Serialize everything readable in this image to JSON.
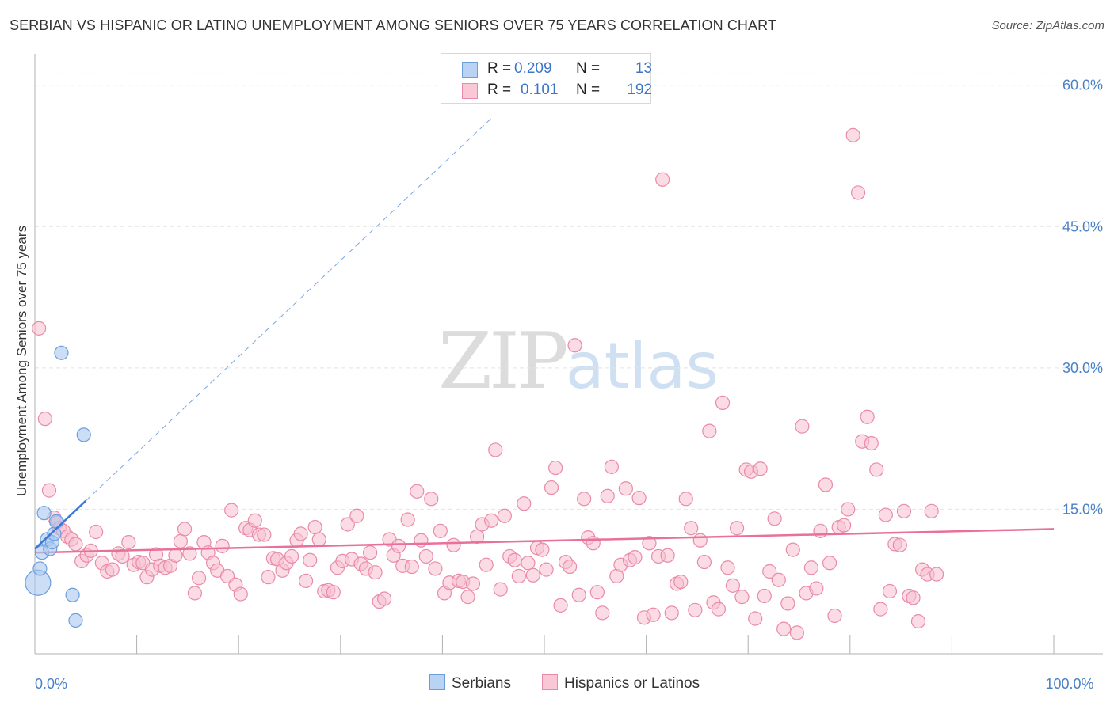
{
  "title": "SERBIAN VS HISPANIC OR LATINO UNEMPLOYMENT AMONG SENIORS OVER 75 YEARS CORRELATION CHART",
  "source": "Source: ZipAtlas.com",
  "watermark": {
    "zip": "ZIP",
    "atlas": "atlas"
  },
  "legend": {
    "rows": [
      {
        "r_label": "R =",
        "r_value": "0.209",
        "n_label": "N =",
        "n_value": "13"
      },
      {
        "r_label": "R =",
        "r_value": "0.101",
        "n_label": "N =",
        "n_value": "192"
      }
    ]
  },
  "bottom_legend": {
    "serbians": "Serbians",
    "hispanics": "Hispanics or Latinos"
  },
  "colors": {
    "serbian_fill": "#a9c8f0",
    "serbian_stroke": "#6d9edc",
    "serbian_line": "#3b78d8",
    "hispanic_fill": "#f7bfd0",
    "hispanic_stroke": "#e98aab",
    "hispanic_line": "#e8709a",
    "tick_label": "#4a80c8",
    "grid": "#e4e4e4"
  },
  "chart_data": {
    "type": "scatter",
    "title": "SERBIAN VS HISPANIC OR LATINO UNEMPLOYMENT AMONG SENIORS OVER 75 YEARS CORRELATION CHART",
    "xlabel": "",
    "ylabel": "Unemployment Among Seniors over 75 years",
    "xlim": [
      0,
      100
    ],
    "ylim": [
      0,
      63
    ],
    "x_tick_labels": [
      {
        "value": 0,
        "label": "0.0%"
      },
      {
        "value": 100,
        "label": "100.0%"
      }
    ],
    "y_tick_labels": [
      {
        "value": 15,
        "label": "15.0%"
      },
      {
        "value": 30,
        "label": "30.0%"
      },
      {
        "value": 45,
        "label": "45.0%"
      },
      {
        "value": 60,
        "label": "60.0%"
      }
    ],
    "grid": true,
    "legend_position": "top-center",
    "series": [
      {
        "name": "Serbians",
        "r": 0.209,
        "n": 13,
        "trend": {
          "x0": 0,
          "y0": 10.8,
          "x1": 5,
          "y1": 15.9,
          "dashed_to_x": 45
        },
        "points": [
          [
            0.3,
            7.2,
            1.0
          ],
          [
            0.5,
            8.7,
            0.6
          ],
          [
            0.7,
            10.4,
            0.6
          ],
          [
            0.9,
            14.6,
            0.6
          ],
          [
            1.2,
            11.8,
            0.6
          ],
          [
            1.5,
            10.8,
            0.6
          ],
          [
            1.7,
            11.5,
            0.6
          ],
          [
            1.9,
            12.4,
            0.6
          ],
          [
            2.1,
            13.7,
            0.6
          ],
          [
            2.6,
            31.6,
            0.6
          ],
          [
            3.7,
            5.9,
            0.6
          ],
          [
            4.0,
            3.2,
            0.6
          ],
          [
            4.8,
            22.9,
            0.6
          ]
        ]
      },
      {
        "name": "Hispanics or Latinos",
        "r": 0.101,
        "n": 192,
        "trend": {
          "x0": 0,
          "y0": 10.4,
          "x1": 100,
          "y1": 12.9
        },
        "points": [
          [
            0.4,
            34.2
          ],
          [
            1.0,
            24.6
          ],
          [
            1.4,
            17.0
          ],
          [
            1.9,
            14.1
          ],
          [
            2.2,
            13.6
          ],
          [
            2.4,
            13.0
          ],
          [
            2.8,
            12.7
          ],
          [
            3.2,
            12.1
          ],
          [
            3.6,
            11.8
          ],
          [
            4.0,
            11.3
          ],
          [
            4.6,
            9.5
          ],
          [
            5.1,
            10.1
          ],
          [
            5.5,
            10.6
          ],
          [
            6.0,
            12.6
          ],
          [
            6.6,
            9.3
          ],
          [
            7.1,
            8.4
          ],
          [
            7.6,
            8.6
          ],
          [
            8.2,
            10.3
          ],
          [
            8.6,
            10.0
          ],
          [
            9.2,
            11.5
          ],
          [
            9.7,
            9.1
          ],
          [
            10.2,
            9.4
          ],
          [
            10.6,
            9.3
          ],
          [
            11.0,
            7.8
          ],
          [
            11.5,
            8.6
          ],
          [
            11.9,
            10.2
          ],
          [
            12.3,
            9.0
          ],
          [
            12.8,
            8.8
          ],
          [
            13.3,
            9.0
          ],
          [
            13.8,
            10.1
          ],
          [
            14.3,
            11.6
          ],
          [
            14.7,
            12.9
          ],
          [
            15.2,
            10.3
          ],
          [
            15.7,
            6.1
          ],
          [
            16.1,
            7.7
          ],
          [
            16.6,
            11.5
          ],
          [
            17.0,
            10.4
          ],
          [
            17.5,
            9.3
          ],
          [
            17.9,
            8.5
          ],
          [
            18.4,
            11.1
          ],
          [
            18.9,
            7.9
          ],
          [
            19.3,
            14.9
          ],
          [
            19.7,
            7.0
          ],
          [
            20.2,
            6.0
          ],
          [
            20.7,
            13.0
          ],
          [
            21.1,
            12.8
          ],
          [
            21.6,
            13.8
          ],
          [
            22.0,
            12.3
          ],
          [
            22.5,
            12.3
          ],
          [
            22.9,
            7.8
          ],
          [
            23.4,
            9.8
          ],
          [
            23.8,
            9.7
          ],
          [
            24.3,
            8.5
          ],
          [
            24.7,
            9.3
          ],
          [
            25.2,
            10.0
          ],
          [
            25.7,
            11.7
          ],
          [
            26.1,
            12.4
          ],
          [
            26.6,
            7.4
          ],
          [
            27.0,
            9.6
          ],
          [
            27.5,
            13.1
          ],
          [
            27.9,
            11.8
          ],
          [
            28.4,
            6.3
          ],
          [
            28.8,
            6.4
          ],
          [
            29.3,
            6.2
          ],
          [
            29.7,
            8.8
          ],
          [
            30.2,
            9.5
          ],
          [
            30.7,
            13.4
          ],
          [
            31.1,
            9.7
          ],
          [
            31.6,
            14.3
          ],
          [
            32.0,
            9.2
          ],
          [
            32.5,
            8.7
          ],
          [
            32.9,
            10.4
          ],
          [
            33.4,
            8.3
          ],
          [
            33.8,
            5.2
          ],
          [
            34.3,
            5.5
          ],
          [
            34.8,
            11.8
          ],
          [
            35.2,
            10.1
          ],
          [
            35.7,
            11.1
          ],
          [
            36.1,
            9.0
          ],
          [
            36.6,
            13.9
          ],
          [
            37.0,
            8.9
          ],
          [
            37.5,
            16.9
          ],
          [
            37.9,
            11.7
          ],
          [
            38.4,
            10.0
          ],
          [
            38.9,
            16.1
          ],
          [
            39.3,
            8.7
          ],
          [
            39.8,
            12.7
          ],
          [
            40.2,
            6.1
          ],
          [
            40.7,
            7.2
          ],
          [
            41.1,
            11.2
          ],
          [
            41.6,
            7.4
          ],
          [
            42.0,
            7.3
          ],
          [
            42.5,
            5.7
          ],
          [
            43.0,
            7.1
          ],
          [
            43.4,
            12.1
          ],
          [
            43.9,
            13.4
          ],
          [
            44.3,
            9.1
          ],
          [
            44.8,
            13.8
          ],
          [
            45.2,
            21.3
          ],
          [
            45.7,
            6.5
          ],
          [
            46.1,
            14.3
          ],
          [
            46.6,
            10.0
          ],
          [
            47.1,
            9.6
          ],
          [
            47.5,
            7.9
          ],
          [
            48.0,
            15.6
          ],
          [
            48.4,
            9.3
          ],
          [
            48.9,
            8.0
          ],
          [
            49.3,
            10.9
          ],
          [
            49.8,
            10.7
          ],
          [
            50.2,
            8.6
          ],
          [
            50.7,
            17.3
          ],
          [
            51.1,
            19.4
          ],
          [
            51.6,
            4.8
          ],
          [
            52.1,
            9.4
          ],
          [
            52.5,
            8.9
          ],
          [
            53.0,
            32.4
          ],
          [
            53.4,
            5.9
          ],
          [
            53.9,
            16.1
          ],
          [
            54.3,
            12.0
          ],
          [
            54.8,
            11.4
          ],
          [
            55.2,
            6.2
          ],
          [
            55.7,
            4.0
          ],
          [
            56.2,
            16.4
          ],
          [
            56.6,
            19.5
          ],
          [
            57.1,
            7.9
          ],
          [
            57.5,
            9.1
          ],
          [
            58.0,
            17.2
          ],
          [
            58.4,
            9.6
          ],
          [
            58.9,
            9.9
          ],
          [
            59.3,
            16.2
          ],
          [
            59.8,
            3.5
          ],
          [
            60.3,
            11.4
          ],
          [
            60.7,
            3.8
          ],
          [
            61.2,
            10.0
          ],
          [
            61.6,
            50.0
          ],
          [
            62.1,
            10.1
          ],
          [
            62.5,
            4.0
          ],
          [
            63.0,
            7.1
          ],
          [
            63.4,
            7.3
          ],
          [
            63.9,
            16.1
          ],
          [
            64.4,
            13.0
          ],
          [
            64.8,
            4.3
          ],
          [
            65.3,
            11.7
          ],
          [
            65.7,
            9.4
          ],
          [
            66.2,
            23.3
          ],
          [
            66.6,
            5.1
          ],
          [
            67.1,
            4.4
          ],
          [
            67.5,
            26.3
          ],
          [
            68.0,
            8.8
          ],
          [
            68.5,
            6.9
          ],
          [
            68.9,
            13.0
          ],
          [
            69.4,
            5.7
          ],
          [
            69.8,
            19.2
          ],
          [
            70.3,
            19.0
          ],
          [
            70.7,
            3.4
          ],
          [
            71.2,
            19.3
          ],
          [
            71.6,
            5.8
          ],
          [
            72.1,
            8.4
          ],
          [
            72.6,
            14.0
          ],
          [
            73.0,
            7.5
          ],
          [
            73.5,
            2.3
          ],
          [
            73.9,
            5.0
          ],
          [
            74.4,
            10.7
          ],
          [
            74.8,
            1.9
          ],
          [
            75.3,
            23.8
          ],
          [
            75.7,
            6.1
          ],
          [
            76.2,
            8.8
          ],
          [
            76.7,
            6.6
          ],
          [
            77.1,
            12.7
          ],
          [
            77.6,
            17.6
          ],
          [
            78.0,
            9.3
          ],
          [
            78.5,
            3.7
          ],
          [
            78.9,
            13.1
          ],
          [
            79.4,
            13.3
          ],
          [
            79.8,
            15.0
          ],
          [
            80.3,
            54.7
          ],
          [
            80.8,
            48.6
          ],
          [
            81.2,
            22.2
          ],
          [
            81.7,
            24.8
          ],
          [
            82.1,
            22.0
          ],
          [
            82.6,
            19.2
          ],
          [
            83.0,
            4.4
          ],
          [
            83.5,
            14.4
          ],
          [
            83.9,
            6.3
          ],
          [
            84.4,
            11.3
          ],
          [
            84.9,
            11.2
          ],
          [
            85.3,
            14.8
          ],
          [
            85.8,
            5.8
          ],
          [
            86.2,
            5.6
          ],
          [
            86.7,
            3.1
          ],
          [
            87.1,
            8.6
          ],
          [
            87.6,
            8.1
          ],
          [
            88.0,
            14.8
          ],
          [
            88.5,
            8.1
          ]
        ]
      }
    ]
  }
}
